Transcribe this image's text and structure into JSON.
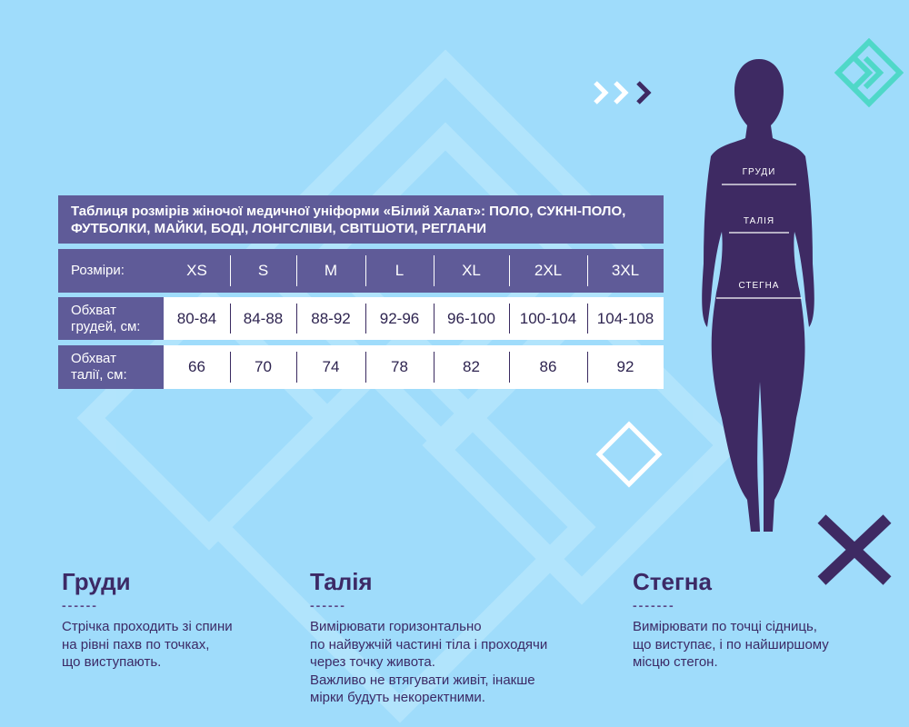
{
  "table": {
    "title": "Таблиця розмірів жіночої медичної уніформи «Білий Халат»: ПОЛО, СУКНІ-ПОЛО, ФУТБОЛКИ, МАЙКИ, БОДІ, ЛОНГСЛІВИ, СВІТШОТИ, РЕГЛАНИ",
    "header": {
      "label": "Розміри:",
      "sizes": [
        "XS",
        "S",
        "M",
        "L",
        "XL",
        "2XL",
        "3XL"
      ]
    },
    "rows": [
      {
        "label": "Обхват грудей, см:",
        "values": [
          "80-84",
          "84-88",
          "88-92",
          "92-96",
          "96-100",
          "100-104",
          "104-108"
        ]
      },
      {
        "label": "Обхват талії, см:",
        "values": [
          "66",
          "70",
          "74",
          "78",
          "82",
          "86",
          "92"
        ]
      }
    ]
  },
  "figure": {
    "labels": [
      "ГРУДИ",
      "ТАЛІЯ",
      "СТЕГНА"
    ]
  },
  "sections": [
    {
      "title": "Груди",
      "dashes": "------",
      "lines": [
        "Стрічка проходить зі спини",
        "на рівні пахв по точках,",
        "що виступають."
      ]
    },
    {
      "title": "Талія",
      "dashes": "------",
      "lines": [
        "Вимірювати  горизонтально",
        "по найвужчій частині тіла і проходячи",
        "через точку живота.",
        "Важливо не втягувати живіт, інакше",
        "мірки будуть некоректними."
      ]
    },
    {
      "title": "Стегна",
      "dashes": "-------",
      "lines": [
        "Вимірювати по точці сідниць,",
        "що виступає, і по найширшому",
        "місцю стегон."
      ]
    }
  ],
  "colors": {
    "background": "#9fdcfb",
    "accent": "#5f5b98",
    "figure": "#3e2a63",
    "teal": "#4fd8c8"
  },
  "icons": [
    "chevrons-right-icon",
    "diamond-logo-icon",
    "diamond-outline-icon",
    "x-mark-icon"
  ]
}
